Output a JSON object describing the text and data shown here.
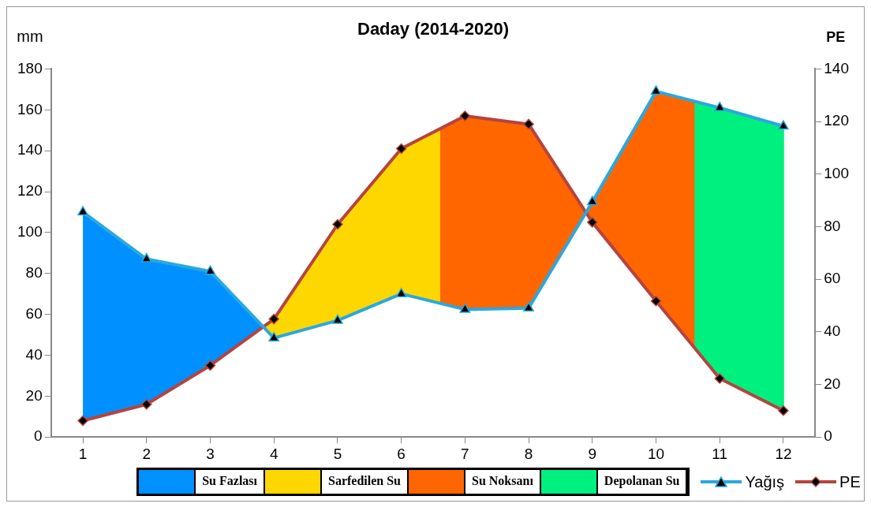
{
  "chart_data": {
    "type": "line",
    "title": "Daday (2014-2020)",
    "ylabel": "mm",
    "y2label": "PE",
    "x": [
      1,
      2,
      3,
      4,
      5,
      6,
      7,
      8,
      9,
      10,
      11,
      12
    ],
    "xlim": [
      0.5,
      12.5
    ],
    "xticks": [
      1,
      2,
      3,
      4,
      5,
      6,
      7,
      8,
      9,
      10,
      11,
      12
    ],
    "ylim": [
      0,
      180
    ],
    "yticks": [
      0,
      20,
      40,
      60,
      80,
      100,
      120,
      140,
      160,
      180
    ],
    "y2lim": [
      0,
      140
    ],
    "y2ticks": [
      0,
      20,
      40,
      60,
      80,
      100,
      120,
      140
    ],
    "legend": "bottom",
    "grid": false,
    "series": [
      {
        "type": "area",
        "name": "Su Fazlası",
        "color": "#0090ff",
        "x": [
          1,
          2,
          3,
          3.83,
          3,
          2,
          1
        ],
        "values": [
          110,
          87,
          81,
          53.8,
          35,
          16,
          8
        ]
      },
      {
        "type": "area",
        "name": "Sarfedilen Su",
        "color": "#ffd700",
        "x": [
          3.83,
          4,
          5,
          6,
          6.6,
          6.6,
          6,
          5,
          4
        ],
        "values": [
          53.8,
          57.7,
          104,
          141,
          150.6,
          65.4,
          70,
          57,
          48.4
        ]
      },
      {
        "type": "area",
        "name": "Su Noksanı",
        "color": "#ff6600",
        "x": [
          6.6,
          7,
          8,
          8.9,
          9,
          10,
          10.6,
          10.6,
          10,
          9,
          8.9,
          8,
          7,
          6.6
        ],
        "values": [
          150.6,
          157,
          153,
          109.8,
          105,
          66.5,
          43.8,
          164.2,
          169,
          115,
          109.8,
          63,
          62.4,
          65.4
        ]
      },
      {
        "type": "area",
        "name": "Depolanan Su",
        "color": "#00f080",
        "x": [
          10.6,
          11,
          12,
          12,
          11,
          10.6
        ],
        "values": [
          164.2,
          161,
          152,
          12.9,
          28.6,
          43.8
        ]
      },
      {
        "type": "line",
        "name": "Yağış",
        "color": "#29a8e0",
        "marker": "triangle",
        "values": [
          110,
          87,
          81,
          48.4,
          57,
          70,
          62.4,
          63,
          115,
          169,
          161,
          152
        ]
      },
      {
        "type": "line",
        "name": "PE",
        "color": "#b5443f",
        "marker": "diamond",
        "values": [
          8,
          16,
          35,
          57.7,
          104,
          141,
          157,
          153,
          105,
          66.5,
          28.6,
          12.9
        ]
      }
    ]
  }
}
